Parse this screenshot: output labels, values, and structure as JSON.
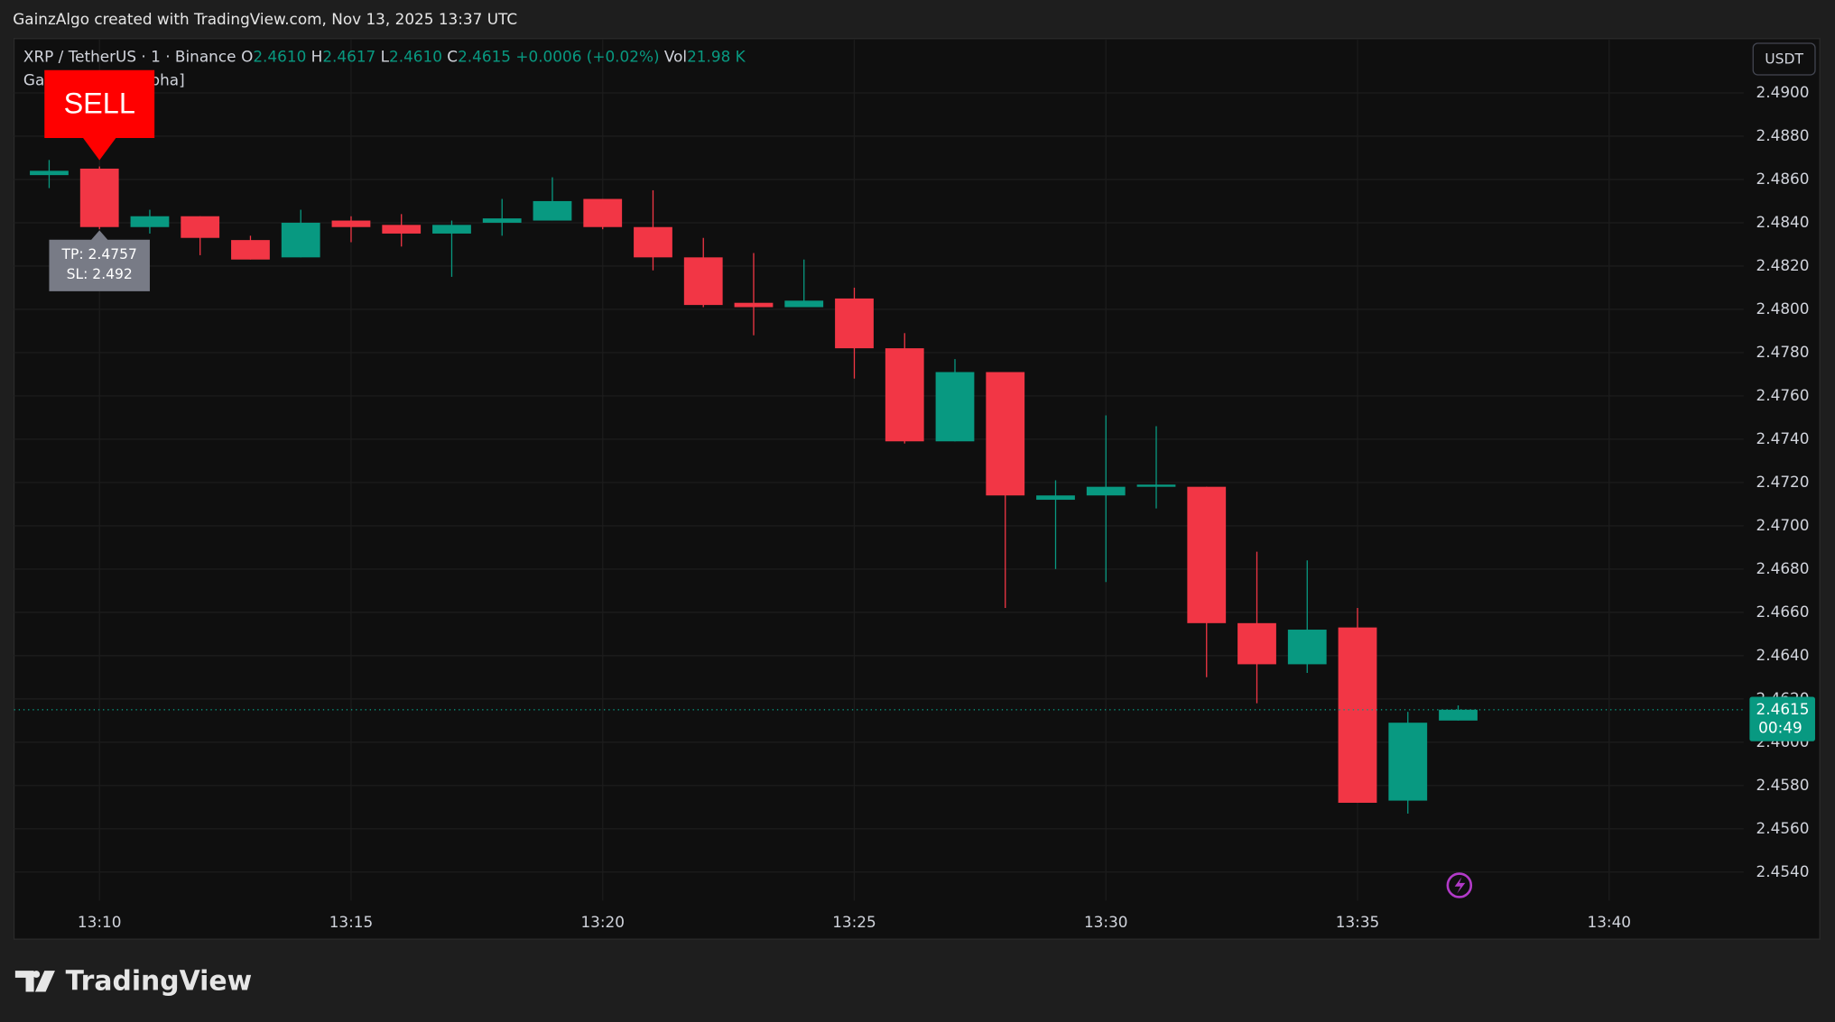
{
  "header": {
    "caption": "GainzAlgo created with TradingView.com, Nov 13, 2025 13:37 UTC",
    "logo": "TradingView"
  },
  "chart_data": {
    "type": "candlestick",
    "title": "XRP / TetherUS · 1 · Binance",
    "ohlc_legend": [
      {
        "label": "O",
        "value": "2.4610"
      },
      {
        "label": "H",
        "value": "2.4617"
      },
      {
        "label": "L",
        "value": "2.4610"
      },
      {
        "label": "C",
        "value": "2.4615"
      }
    ],
    "change": "+0.0006 (+0.02%)",
    "volume": {
      "label": "Vol",
      "value": "21.98 K"
    },
    "indicator": "GainzAlgo V2 [Alpha]",
    "signal": "SELL",
    "targets": [
      "TP: 2.4757",
      "SL: 2.492"
    ],
    "currency": "USDT",
    "last_price": {
      "value": 2.4615,
      "label": "2.4615"
    },
    "countdown": "00:49",
    "up_color": "#089981",
    "down_color": "#f23645",
    "categories": [
      null,
      "13:10",
      null,
      null,
      null,
      null,
      "13:15",
      null,
      null,
      null,
      null,
      "13:20",
      null,
      null,
      null,
      null,
      "13:25",
      null,
      null,
      null,
      null,
      "13:30",
      null,
      null,
      null,
      null,
      "13:35",
      null,
      null,
      null,
      null,
      "13:40"
    ],
    "open": [
      2.4862,
      2.4865,
      2.4838,
      2.4843,
      2.4832,
      2.4824,
      2.4841,
      2.4839,
      2.4835,
      2.484,
      2.4841,
      2.4851,
      2.4838,
      2.4824,
      2.4803,
      2.4801,
      2.4805,
      2.4782,
      2.4739,
      2.4771,
      2.4712,
      2.4714,
      2.4718,
      2.4718,
      2.4655,
      2.4636,
      2.4653,
      2.4573,
      2.461,
      null,
      null,
      null
    ],
    "high": [
      2.4869,
      2.4866,
      2.4846,
      2.4843,
      2.4834,
      2.4846,
      2.4843,
      2.4844,
      2.4841,
      2.4851,
      2.4861,
      2.4851,
      2.4855,
      2.4833,
      2.4826,
      2.4823,
      2.481,
      2.4789,
      2.4777,
      2.4771,
      2.4721,
      2.4751,
      2.4746,
      2.4718,
      2.4688,
      2.4684,
      2.4662,
      2.4614,
      2.4617,
      null,
      null,
      null
    ],
    "low": [
      2.4856,
      2.4837,
      2.4835,
      2.4825,
      2.4823,
      2.4824,
      2.4831,
      2.4829,
      2.4815,
      2.4834,
      2.4841,
      2.4837,
      2.4818,
      2.4801,
      2.4788,
      2.4801,
      2.4768,
      2.4738,
      2.4739,
      2.4662,
      2.468,
      2.4674,
      2.4708,
      2.463,
      2.4618,
      2.4632,
      2.4572,
      2.4567,
      2.461,
      null,
      null,
      null
    ],
    "close": [
      2.4864,
      2.4838,
      2.4843,
      2.4833,
      2.4823,
      2.484,
      2.4838,
      2.4835,
      2.4839,
      2.4842,
      2.485,
      2.4838,
      2.4824,
      2.4802,
      2.4801,
      2.4804,
      2.4782,
      2.4739,
      2.4771,
      2.4714,
      2.4714,
      2.4718,
      2.4719,
      2.4655,
      2.4636,
      2.4652,
      2.4572,
      2.4609,
      2.4615,
      null,
      null,
      null
    ],
    "ylim": [
      2.4509,
      2.4924
    ],
    "yticks": [
      {
        "value": 2.454,
        "label": "2.4540"
      },
      {
        "value": 2.456,
        "label": "2.4560"
      },
      {
        "value": 2.458,
        "label": "2.4580"
      },
      {
        "value": 2.46,
        "label": "2.4600"
      },
      {
        "value": 2.462,
        "label": "2.4620"
      },
      {
        "value": 2.464,
        "label": "2.4640"
      },
      {
        "value": 2.466,
        "label": "2.4660"
      },
      {
        "value": 2.468,
        "label": "2.4680"
      },
      {
        "value": 2.47,
        "label": "2.4700"
      },
      {
        "value": 2.472,
        "label": "2.4720"
      },
      {
        "value": 2.474,
        "label": "2.4740"
      },
      {
        "value": 2.476,
        "label": "2.4760"
      },
      {
        "value": 2.478,
        "label": "2.4780"
      },
      {
        "value": 2.48,
        "label": "2.4800"
      },
      {
        "value": 2.482,
        "label": "2.4820"
      },
      {
        "value": 2.484,
        "label": "2.4840"
      },
      {
        "value": 2.486,
        "label": "2.4860"
      },
      {
        "value": 2.488,
        "label": "2.4880"
      },
      {
        "value": 2.49,
        "label": "2.4900"
      }
    ],
    "grid": true
  }
}
